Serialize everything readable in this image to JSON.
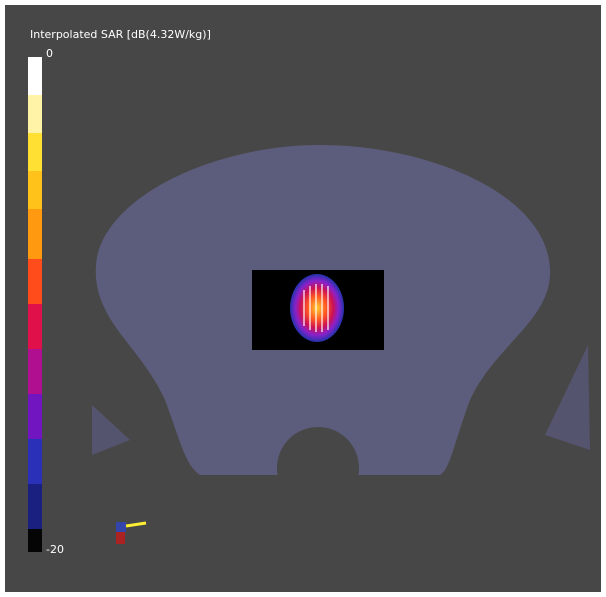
{
  "colorbar": {
    "title": "Interpolated SAR [dB(4.32W/kg)]",
    "max_label": 0,
    "min_label": -20
  }
}
